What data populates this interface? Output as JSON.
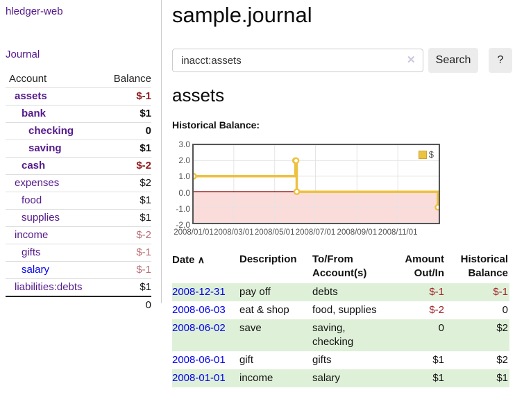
{
  "colors": {
    "accent_purple": "#551a8b",
    "link_blue": "#0000ee",
    "negative_strong": "#8f1d21",
    "negative_soft": "#b96d74",
    "register_negative": "#a02327",
    "row_highlight_green": "#dff0d8",
    "chart_line_yellow": "#edc240",
    "chart_negative_fill": "#fadcda",
    "chart_zero_line": "#8b0000"
  },
  "app": {
    "title": "hledger-web"
  },
  "sidebar": {
    "journal_link": "Journal",
    "table": {
      "account_header": "Account",
      "balance_header": "Balance",
      "rows": [
        {
          "account": "assets",
          "level": 1,
          "bold": true,
          "link_color": "purple",
          "balance": "$-1",
          "balance_style": "negative-strong"
        },
        {
          "account": "bank",
          "level": 2,
          "bold": true,
          "link_color": "purple",
          "balance": "$1",
          "balance_style": "positive"
        },
        {
          "account": "checking",
          "level": 3,
          "bold": true,
          "link_color": "purple",
          "balance": "0",
          "balance_style": "positive"
        },
        {
          "account": "saving",
          "level": 3,
          "bold": true,
          "link_color": "purple",
          "balance": "$1",
          "balance_style": "positive"
        },
        {
          "account": "cash",
          "level": 2,
          "bold": true,
          "link_color": "purple",
          "balance": "$-2",
          "balance_style": "negative-strong"
        },
        {
          "account": "expenses",
          "level": 1,
          "bold": false,
          "link_color": "purple",
          "balance": "$2",
          "balance_style": "positive"
        },
        {
          "account": "food",
          "level": 2,
          "bold": false,
          "link_color": "purple",
          "balance": "$1",
          "balance_style": "positive"
        },
        {
          "account": "supplies",
          "level": 2,
          "bold": false,
          "link_color": "purple",
          "balance": "$1",
          "balance_style": "positive"
        },
        {
          "account": "income",
          "level": 1,
          "bold": false,
          "link_color": "purple",
          "balance": "$-2",
          "balance_style": "negative-soft"
        },
        {
          "account": "gifts",
          "level": 2,
          "bold": false,
          "link_color": "purple",
          "balance": "$-1",
          "balance_style": "negative-soft"
        },
        {
          "account": "salary",
          "level": 2,
          "bold": false,
          "link_color": "blue",
          "balance": "$-1",
          "balance_style": "negative-soft"
        },
        {
          "account": "liabilities:debts",
          "level": 1,
          "bold": false,
          "link_color": "purple",
          "balance": "$1",
          "balance_style": "positive"
        }
      ],
      "total": "0"
    }
  },
  "main": {
    "title": "sample.journal",
    "search": {
      "value": "inacct:assets",
      "clear_icon": "✕",
      "button_label": "Search",
      "help_label": "?"
    },
    "account_heading": "assets",
    "chart_label": "Historical Balance:"
  },
  "chart_data": {
    "type": "line",
    "title": "Historical Balance",
    "legend": [
      "$"
    ],
    "step": true,
    "series": [
      {
        "name": "$",
        "points": [
          {
            "x": "2008/01/01",
            "y": 1
          },
          {
            "x": "2008/06/01",
            "y": 2
          },
          {
            "x": "2008/06/02",
            "y": 2
          },
          {
            "x": "2008/06/03",
            "y": 0
          },
          {
            "x": "2008/12/31",
            "y": -1
          }
        ]
      }
    ],
    "x_min": "2008/01/01",
    "x_max": "2009/01/01",
    "xticks": [
      "2008/01/01",
      "2008/03/01",
      "2008/05/01",
      "2008/07/01",
      "2008/09/01",
      "2008/11/01"
    ],
    "ylim": [
      -2,
      3
    ],
    "yticks": [
      3.0,
      2.0,
      1.0,
      0.0,
      -1.0,
      -2.0
    ],
    "grid": true,
    "legend_position": "top-right",
    "negative_region_shaded": true
  },
  "register": {
    "headers": {
      "date": "Date",
      "sort_icon": "∧",
      "description": "Description",
      "accounts": "To/From Account(s)",
      "amount": "Amount Out/In",
      "balance": "Historical Balance"
    },
    "rows": [
      {
        "date": "2008-12-31",
        "description": "pay off",
        "accounts": "debts",
        "amount": "$-1",
        "amount_negative": true,
        "balance": "$-1",
        "balance_negative": true,
        "highlighted": true
      },
      {
        "date": "2008-06-03",
        "description": "eat & shop",
        "accounts": "food, supplies",
        "amount": "$-2",
        "amount_negative": true,
        "balance": "0",
        "balance_negative": false,
        "highlighted": false
      },
      {
        "date": "2008-06-02",
        "description": "save",
        "accounts": "saving, checking",
        "amount": "0",
        "amount_negative": false,
        "balance": "$2",
        "balance_negative": false,
        "highlighted": true
      },
      {
        "date": "2008-06-01",
        "description": "gift",
        "accounts": "gifts",
        "amount": "$1",
        "amount_negative": false,
        "balance": "$2",
        "balance_negative": false,
        "highlighted": false
      },
      {
        "date": "2008-01-01",
        "description": "income",
        "accounts": "salary",
        "amount": "$1",
        "amount_negative": false,
        "balance": "$1",
        "balance_negative": false,
        "highlighted": true
      }
    ]
  }
}
